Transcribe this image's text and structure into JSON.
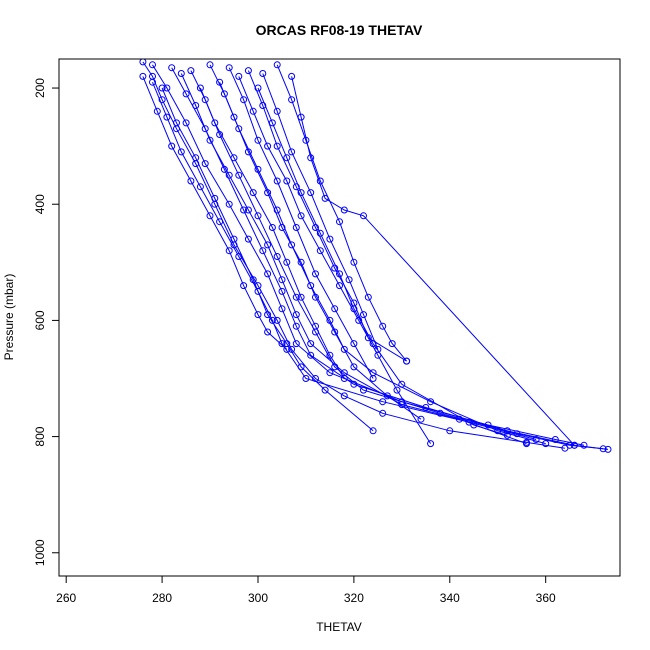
{
  "chart_data": {
    "type": "line",
    "title": "ORCAS RF08-19 THETAV",
    "xlabel": "THETAV",
    "ylabel": "Pressure (mbar)",
    "xlim": [
      258.5,
      375.5
    ],
    "ylim": [
      1040,
      150
    ],
    "y_reversed": true,
    "grid": false,
    "legend": "none",
    "x_ticks": [
      "260",
      "280",
      "300",
      "320",
      "340",
      "360"
    ],
    "y_ticks": [
      "200",
      "400",
      "600",
      "800",
      "1000"
    ],
    "series_color": "#0000ff",
    "marker": "open-circle",
    "series": [
      {
        "x": [
          276,
          278,
          280,
          283,
          287,
          291,
          295,
          300,
          304,
          307,
          312,
          318,
          326,
          340,
          356,
          364
        ],
        "y": [
          155,
          180,
          220,
          270,
          330,
          400,
          470,
          540,
          600,
          650,
          700,
          730,
          760,
          790,
          810,
          820
        ]
      },
      {
        "x": [
          278,
          281,
          285,
          289,
          294,
          298,
          302,
          305,
          308,
          315,
          330,
          348,
          362,
          368
        ],
        "y": [
          160,
          200,
          260,
          330,
          400,
          460,
          520,
          580,
          640,
          690,
          740,
          780,
          805,
          815
        ]
      },
      {
        "x": [
          282,
          285,
          289,
          293,
          297,
          301,
          305,
          308,
          311,
          320,
          335,
          352,
          366,
          373
        ],
        "y": [
          165,
          210,
          270,
          340,
          410,
          480,
          550,
          610,
          660,
          710,
          750,
          790,
          815,
          822
        ]
      },
      {
        "x": [
          286,
          289,
          292,
          296,
          300,
          304,
          308,
          312,
          316,
          322,
          338,
          354,
          365,
          372
        ],
        "y": [
          170,
          220,
          280,
          350,
          420,
          490,
          560,
          620,
          680,
          720,
          760,
          795,
          815,
          821
        ]
      },
      {
        "x": [
          290,
          293,
          296,
          300,
          304,
          307,
          311,
          315,
          318,
          324,
          336,
          350,
          360
        ],
        "y": [
          160,
          210,
          270,
          340,
          410,
          470,
          540,
          600,
          650,
          690,
          740,
          790,
          812
        ]
      },
      {
        "x": [
          294,
          297,
          300,
          304,
          308,
          312,
          316,
          320,
          324
        ],
        "y": [
          165,
          220,
          290,
          360,
          440,
          520,
          580,
          640,
          700
        ]
      },
      {
        "x": [
          298,
          301,
          304,
          308,
          312,
          316,
          320,
          323,
          331
        ],
        "y": [
          170,
          230,
          300,
          370,
          440,
          510,
          570,
          630,
          670
        ]
      },
      {
        "x": [
          301,
          304,
          307,
          311,
          315,
          319,
          322,
          325
        ],
        "y": [
          175,
          240,
          310,
          380,
          460,
          530,
          590,
          650
        ]
      },
      {
        "x": [
          304,
          307,
          310,
          313,
          317,
          320,
          323,
          326,
          328,
          331
        ],
        "y": [
          160,
          220,
          290,
          360,
          430,
          500,
          560,
          610,
          640,
          670
        ]
      },
      {
        "x": [
          307,
          309,
          311,
          314,
          318,
          322,
          366
        ],
        "y": [
          180,
          250,
          320,
          390,
          410,
          420,
          815
        ]
      },
      {
        "x": [
          278,
          281,
          284,
          288,
          292,
          296,
          300,
          303,
          305,
          310,
          326,
          344,
          358
        ],
        "y": [
          190,
          250,
          310,
          370,
          430,
          490,
          550,
          600,
          640,
          700,
          740,
          775,
          805
        ]
      },
      {
        "x": [
          280,
          283,
          287,
          291,
          295,
          299,
          302,
          306,
          309,
          314,
          324
        ],
        "y": [
          200,
          260,
          320,
          390,
          460,
          530,
          590,
          640,
          680,
          720,
          790
        ]
      },
      {
        "x": [
          276,
          279,
          282,
          286,
          290,
          294,
          297,
          300,
          302,
          306
        ],
        "y": [
          180,
          240,
          300,
          360,
          420,
          480,
          540,
          590,
          620,
          650
        ]
      },
      {
        "x": [
          288,
          291,
          295,
          299,
          303,
          306,
          309,
          312,
          315,
          318
        ],
        "y": [
          200,
          260,
          320,
          380,
          440,
          500,
          560,
          610,
          660,
          700
        ]
      },
      {
        "x": [
          296,
          299,
          302,
          306,
          309,
          313,
          317,
          321,
          325,
          329,
          336
        ],
        "y": [
          180,
          240,
          300,
          360,
          420,
          480,
          540,
          600,
          660,
          720,
          812
        ]
      },
      {
        "x": [
          300,
          303,
          306,
          309,
          313,
          317,
          320,
          324,
          330,
          345,
          352
        ],
        "y": [
          200,
          260,
          320,
          380,
          450,
          520,
          580,
          640,
          710,
          780,
          798
        ]
      },
      {
        "x": [
          292,
          295,
          298,
          302,
          305,
          309,
          312,
          316,
          320,
          327,
          334
        ],
        "y": [
          190,
          250,
          310,
          380,
          440,
          500,
          560,
          620,
          680,
          730,
          770
        ]
      },
      {
        "x": [
          284,
          287,
          290,
          294,
          298,
          302,
          305,
          308,
          311,
          318,
          330,
          342,
          356
        ],
        "y": [
          175,
          230,
          290,
          350,
          410,
          470,
          530,
          590,
          640,
          690,
          745,
          770,
          812
        ]
      }
    ]
  }
}
